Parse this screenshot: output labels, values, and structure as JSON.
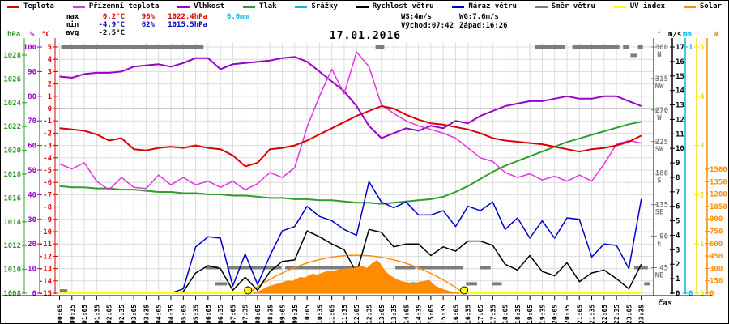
{
  "title": "17.01.2016",
  "legend": [
    {
      "label": "Teplota",
      "color": "#dd0000"
    },
    {
      "label": "Přízemní teplota",
      "color": "#e632e6"
    },
    {
      "label": "Vlhkost",
      "color": "#9900cc"
    },
    {
      "label": "Tlak",
      "color": "#2f9e2f"
    },
    {
      "label": "Srážky",
      "color": "#00b8e8"
    },
    {
      "label": "Rychlost větru",
      "color": "#000000"
    },
    {
      "label": "Náraz větru",
      "color": "#0000cc"
    },
    {
      "label": "Směr větru",
      "color": "#7d7d7d"
    },
    {
      "label": "UV index",
      "color": "#ffff00"
    },
    {
      "label": "Solar",
      "color": "#ff8c00"
    }
  ],
  "stats_left": {
    "columns": [
      24,
      42,
      30,
      58,
      44
    ],
    "rows": [
      [
        {
          "text": "max",
          "color": "#000000"
        },
        {
          "text": "0.2°C",
          "color": "#dd0000"
        },
        {
          "text": "96%",
          "color": "#dd0000"
        },
        {
          "text": "1022.4hPa",
          "color": "#dd0000"
        },
        {
          "text": "0.0mm",
          "color": "#00b8e8"
        }
      ],
      [
        {
          "text": "min",
          "color": "#000000"
        },
        {
          "text": "-4.9°C",
          "color": "#0000cc"
        },
        {
          "text": "62%",
          "color": "#0000cc"
        },
        {
          "text": "1015.5hPa",
          "color": "#0000cc"
        },
        {
          "text": "",
          "color": "#000000"
        }
      ],
      [
        {
          "text": "avg",
          "color": "#000000"
        },
        {
          "text": "-2.5°C",
          "color": "#000000"
        },
        {
          "text": "",
          "color": "#000000"
        },
        {
          "text": "",
          "color": "#000000"
        },
        {
          "text": "",
          "color": "#000000"
        }
      ]
    ]
  },
  "stats_right": {
    "rows": [
      [
        "WS:4m/s",
        "WG:7.6m/s"
      ],
      [
        "Východ:07:42",
        "Západ:16:26"
      ]
    ]
  },
  "xaxis": {
    "label": "čas",
    "categories": [
      "00:05",
      "00:35",
      "01:05",
      "01:35",
      "02:05",
      "02:35",
      "03:05",
      "03:35",
      "04:05",
      "04:35",
      "05:05",
      "05:35",
      "06:05",
      "06:35",
      "07:05",
      "07:35",
      "08:05",
      "08:35",
      "09:05",
      "09:35",
      "10:05",
      "10:35",
      "11:05",
      "11:35",
      "12:05",
      "12:35",
      "13:05",
      "13:35",
      "14:05",
      "14:35",
      "15:05",
      "15:35",
      "16:05",
      "16:35",
      "17:05",
      "17:35",
      "18:05",
      "18:35",
      "19:05",
      "19:35",
      "20:05",
      "20:35",
      "21:05",
      "21:35",
      "22:05",
      "22:35",
      "23:05",
      "23:35"
    ]
  },
  "axes": {
    "left": [
      {
        "unit": "hPa",
        "color": "#2f9e2f",
        "ticks": [
          1028,
          1026,
          1024,
          1022,
          1020,
          1018,
          1016,
          1014,
          1012,
          1010,
          1008
        ]
      },
      {
        "unit": "%",
        "color": "#9900cc",
        "ticks": [
          100,
          90,
          80,
          70,
          60,
          50,
          40,
          30,
          20,
          10,
          0
        ]
      },
      {
        "unit": "°C",
        "color": "#dd0000",
        "ticks": [
          5,
          4,
          3,
          2,
          1,
          0,
          -1,
          -2,
          -3,
          -4,
          -5,
          -6,
          -7,
          -8,
          -9,
          -10,
          -11,
          -12,
          -13,
          -14,
          -15
        ]
      }
    ],
    "right": [
      {
        "unit": "°",
        "color": "#7d7d7d",
        "dir_ticks": [
          {
            "deg": 360,
            "label": "N"
          },
          {
            "deg": 315,
            "label": "NW"
          },
          {
            "deg": 270,
            "label": "W"
          },
          {
            "deg": 225,
            "label": "SW"
          },
          {
            "deg": 180,
            "label": "S"
          },
          {
            "deg": 135,
            "label": "SE"
          },
          {
            "deg": 90,
            "label": "E"
          },
          {
            "deg": 45,
            "label": "NE"
          }
        ]
      },
      {
        "unit": "m/s",
        "color": "#000000",
        "ticks": [
          17,
          16,
          15,
          14,
          13,
          12,
          11,
          10,
          9,
          8,
          7,
          6,
          5,
          4,
          3,
          2,
          1,
          0
        ]
      },
      {
        "unit": "mm",
        "color": "#00b8e8",
        "ticks": [
          1,
          0
        ]
      },
      {
        "unit": "",
        "color": "#f0e000",
        "ticks": [
          5,
          4,
          3,
          2,
          1,
          0
        ]
      },
      {
        "unit": "W",
        "color": "#ff8c00",
        "ticks": [
          1500,
          1350,
          1200,
          1050,
          900,
          750,
          600,
          450,
          300,
          150,
          0
        ]
      }
    ]
  },
  "chart_data": {
    "type": "line",
    "title": "17.01.2016",
    "categories": [
      "00:05",
      "00:35",
      "01:05",
      "01:35",
      "02:05",
      "02:35",
      "03:05",
      "03:35",
      "04:05",
      "04:35",
      "05:05",
      "05:35",
      "06:05",
      "06:35",
      "07:05",
      "07:35",
      "08:05",
      "08:35",
      "09:05",
      "09:35",
      "10:05",
      "10:35",
      "11:05",
      "11:35",
      "12:05",
      "12:35",
      "13:05",
      "13:35",
      "14:05",
      "14:35",
      "15:05",
      "15:35",
      "16:05",
      "16:35",
      "17:05",
      "17:35",
      "18:05",
      "18:35",
      "19:05",
      "19:35",
      "20:05",
      "20:35",
      "21:05",
      "21:35",
      "22:05",
      "22:35",
      "23:05",
      "23:35"
    ],
    "axis_ranges": {
      "temp_c": [
        -15,
        5
      ],
      "humidity_pct": [
        0,
        100
      ],
      "pressure_hpa": [
        1008,
        1029
      ],
      "wind_ms": [
        0,
        17
      ],
      "precip_mm": [
        0,
        1
      ],
      "uv": [
        0,
        5
      ],
      "solar_w": [
        0,
        1500
      ],
      "wind_dir_deg": [
        0,
        360
      ]
    },
    "series": [
      {
        "name": "Tlak",
        "unit": "hPa",
        "color": "#2f9e2f",
        "width": 2,
        "values": [
          1017.0,
          1016.9,
          1016.9,
          1016.8,
          1016.8,
          1016.7,
          1016.7,
          1016.6,
          1016.5,
          1016.5,
          1016.4,
          1016.4,
          1016.3,
          1016.3,
          1016.2,
          1016.2,
          1016.1,
          1016.0,
          1016.0,
          1015.9,
          1015.9,
          1015.8,
          1015.8,
          1015.7,
          1015.6,
          1015.6,
          1015.5,
          1015.6,
          1015.7,
          1015.8,
          1015.9,
          1016.1,
          1016.5,
          1017.0,
          1017.6,
          1018.2,
          1018.7,
          1019.1,
          1019.5,
          1019.9,
          1020.3,
          1020.7,
          1021.0,
          1021.3,
          1021.6,
          1021.9,
          1022.2,
          1022.4
        ]
      },
      {
        "name": "Vlhkost",
        "unit": "%",
        "color": "#9900cc",
        "width": 2,
        "values": [
          88,
          87.5,
          89,
          89.5,
          89.5,
          90,
          92,
          92.5,
          93,
          92,
          93.5,
          95.5,
          95.5,
          91,
          93,
          93.5,
          94,
          94.5,
          95.5,
          96,
          94,
          90,
          86,
          82,
          76,
          68,
          63,
          65,
          67,
          66,
          68,
          67,
          70,
          69,
          72,
          74,
          76,
          77,
          78,
          78,
          79,
          80,
          79,
          79,
          80,
          80,
          78,
          76
        ]
      },
      {
        "name": "Přízemní teplota",
        "unit": "°C",
        "color": "#e632e6",
        "width": 1.5,
        "values": [
          -4.5,
          -4.9,
          -4.4,
          -5.9,
          -6.6,
          -5.6,
          -6.4,
          -6.5,
          -5.4,
          -6.2,
          -5.6,
          -6.2,
          -5.9,
          -6.4,
          -5.9,
          -6.6,
          -6.1,
          -5.2,
          -5.6,
          -4.8,
          -1.5,
          1.0,
          3.2,
          1.2,
          4.6,
          3.4,
          0.3,
          -0.4,
          -1.0,
          -1.4,
          -1.7,
          -2.0,
          -2.4,
          -3.2,
          -4.0,
          -4.3,
          -5.2,
          -5.6,
          -5.3,
          -5.8,
          -5.5,
          -5.9,
          -5.4,
          -5.9,
          -4.5,
          -2.9,
          -2.6,
          -2.8
        ]
      },
      {
        "name": "Teplota",
        "unit": "°C",
        "color": "#dd0000",
        "width": 2,
        "values": [
          -1.6,
          -1.7,
          -1.8,
          -2.1,
          -2.6,
          -2.4,
          -3.3,
          -3.4,
          -3.2,
          -3.1,
          -3.2,
          -3.0,
          -3.2,
          -3.3,
          -3.8,
          -4.7,
          -4.4,
          -3.3,
          -3.2,
          -3.0,
          -2.6,
          -2.1,
          -1.6,
          -1.1,
          -0.6,
          -0.2,
          0.2,
          0.0,
          -0.5,
          -0.9,
          -1.2,
          -1.3,
          -1.5,
          -1.7,
          -2.0,
          -2.4,
          -2.6,
          -2.7,
          -2.8,
          -2.9,
          -3.1,
          -3.3,
          -3.5,
          -3.3,
          -3.2,
          -3.0,
          -2.7,
          -2.2
        ]
      },
      {
        "name": "Náraz větru",
        "unit": "m/s",
        "color": "#0000cc",
        "width": 1.5,
        "values": [
          0,
          0,
          0,
          0,
          0,
          0,
          0,
          0,
          0,
          0,
          0.3,
          3.2,
          3.9,
          3.8,
          0.5,
          2.7,
          0.6,
          2.6,
          4.3,
          4.6,
          6.0,
          5.3,
          5.0,
          4.4,
          4.0,
          7.7,
          6.3,
          5.9,
          6.3,
          5.4,
          5.4,
          5.7,
          4.6,
          6.0,
          5.7,
          6.3,
          4.4,
          5.2,
          3.8,
          5.0,
          3.8,
          5.2,
          5.1,
          2.5,
          3.4,
          3.3,
          1.7,
          6.5
        ]
      },
      {
        "name": "Rychlost větru",
        "unit": "m/s",
        "color": "#000000",
        "width": 1.5,
        "values": [
          0,
          0,
          0,
          0,
          0,
          0,
          0,
          0,
          0,
          0,
          0.1,
          1.4,
          1.9,
          1.7,
          0.2,
          1.1,
          0.2,
          1.5,
          2.2,
          2.3,
          4.3,
          3.9,
          3.4,
          3.0,
          1.4,
          4.4,
          4.2,
          3.2,
          3.4,
          3.4,
          2.6,
          3.2,
          2.9,
          3.6,
          3.6,
          3.3,
          2.0,
          1.6,
          2.6,
          1.5,
          1.2,
          2.1,
          0.8,
          1.4,
          1.6,
          1.0,
          0.3,
          2.0
        ]
      },
      {
        "name": "Srážky",
        "unit": "mm",
        "color": "#00b8e8",
        "width": 1.2,
        "values": [
          0,
          0,
          0,
          0,
          0,
          0,
          0,
          0,
          0,
          0,
          0,
          0,
          0,
          0,
          0,
          0,
          0,
          0,
          0,
          0,
          0,
          0,
          0,
          0,
          0,
          0,
          0,
          0,
          0,
          0,
          0,
          0,
          0,
          0,
          0,
          0,
          0,
          0,
          0,
          0,
          0,
          0,
          0,
          0,
          0,
          0,
          0,
          0
        ]
      },
      {
        "name": "UV index",
        "unit": "UV",
        "color": "#ffff00",
        "width": 2,
        "values": [
          0,
          0,
          0,
          0,
          0,
          0,
          0,
          0,
          0,
          0,
          0,
          0,
          0,
          0,
          0,
          0,
          0,
          0,
          0,
          0,
          0,
          0,
          0,
          0,
          0,
          0,
          0,
          0,
          0,
          0,
          0,
          0,
          0,
          0,
          0,
          0,
          0,
          0,
          0,
          0,
          0,
          0,
          0,
          0,
          0,
          0,
          0,
          0
        ]
      },
      {
        "name": "Solar",
        "unit": "W",
        "color": "#ff8c00",
        "fill": true,
        "points": [
          [
            7.9,
            0
          ],
          [
            8.0,
            10
          ],
          [
            8.2,
            30
          ],
          [
            8.5,
            75
          ],
          [
            8.8,
            105
          ],
          [
            9.0,
            120
          ],
          [
            9.3,
            150
          ],
          [
            9.5,
            145
          ],
          [
            9.8,
            190
          ],
          [
            10.0,
            185
          ],
          [
            10.3,
            230
          ],
          [
            10.5,
            220
          ],
          [
            10.8,
            255
          ],
          [
            11.0,
            265
          ],
          [
            11.3,
            275
          ],
          [
            11.5,
            290
          ],
          [
            11.8,
            295
          ],
          [
            12.0,
            305
          ],
          [
            12.3,
            325
          ],
          [
            12.5,
            300
          ],
          [
            12.7,
            355
          ],
          [
            12.9,
            395
          ],
          [
            13.0,
            370
          ],
          [
            13.1,
            320
          ],
          [
            13.3,
            245
          ],
          [
            13.5,
            200
          ],
          [
            13.7,
            165
          ],
          [
            13.9,
            140
          ],
          [
            14.1,
            128
          ],
          [
            14.4,
            118
          ],
          [
            14.6,
            132
          ],
          [
            14.9,
            148
          ],
          [
            15.0,
            158
          ],
          [
            15.15,
            115
          ],
          [
            15.3,
            78
          ],
          [
            15.6,
            42
          ],
          [
            15.9,
            18
          ],
          [
            16.15,
            4
          ],
          [
            16.25,
            0
          ]
        ]
      }
    ],
    "wind_direction_segments": [
      [
        0.1,
        0.4,
        12,
        0
      ],
      [
        0.15,
        5.9,
        360,
        0
      ],
      [
        6.0,
        6.5,
        45,
        0
      ],
      [
        6.35,
        6.85,
        22,
        0
      ],
      [
        6.85,
        9.05,
        45,
        0
      ],
      [
        9.2,
        12.25,
        45,
        0
      ],
      [
        12.4,
        13.6,
        22,
        1
      ],
      [
        12.85,
        13.2,
        360,
        0
      ],
      [
        13.65,
        14.45,
        45,
        0
      ],
      [
        14.3,
        14.45,
        22,
        0
      ],
      [
        14.55,
        16.4,
        45,
        0
      ],
      [
        16.5,
        16.95,
        22,
        0
      ],
      [
        17.05,
        17.5,
        45,
        0
      ],
      [
        17.55,
        17.95,
        22,
        0
      ],
      [
        19.3,
        20.5,
        360,
        0
      ],
      [
        20.8,
        22.7,
        360,
        0
      ],
      [
        22.85,
        23.1,
        360,
        0
      ],
      [
        23.15,
        23.4,
        348,
        0
      ],
      [
        23.45,
        23.65,
        360,
        0
      ],
      [
        23.3,
        23.85,
        45,
        0
      ],
      [
        23.7,
        23.95,
        22,
        0
      ]
    ],
    "solar_arc": {
      "start_h": 7.7,
      "peak_h": 12.07,
      "end_h": 16.43,
      "peak_w": 460
    },
    "sun_markers": {
      "times": [
        "07:42",
        "16:26"
      ],
      "hours": [
        7.7,
        16.43
      ]
    },
    "zero_line_c": 0
  },
  "colors": {
    "grid": "#dcdcdc",
    "zero_line": "#909090",
    "background": "#ffffff"
  }
}
